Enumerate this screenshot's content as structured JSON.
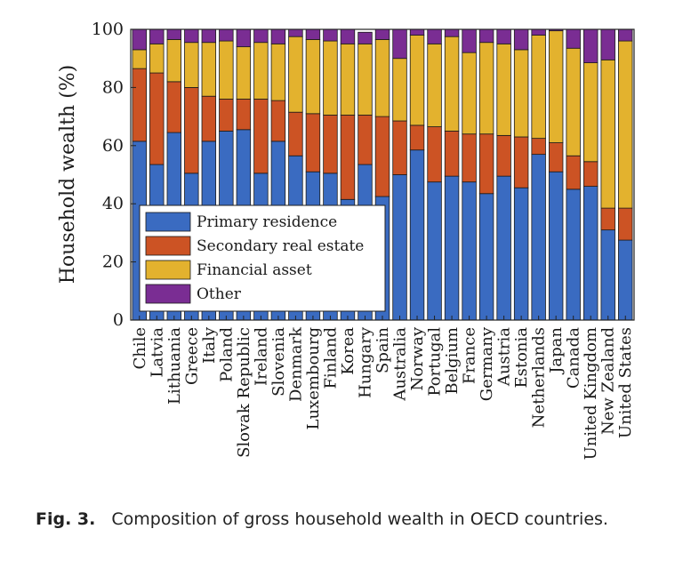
{
  "chart_data": {
    "type": "bar",
    "stacked": true,
    "ylabel": "Household wealth (%)",
    "ylim": [
      0,
      100
    ],
    "yticks": [
      0,
      20,
      40,
      60,
      80,
      100
    ],
    "legend_position": "bottom-left",
    "grid": false,
    "categories": [
      "Chile",
      "Latvia",
      "Lithuania",
      "Greece",
      "Italy",
      "Poland",
      "Slovak Republic",
      "Ireland",
      "Slovenia",
      "Denmark",
      "Luxembourg",
      "Finland",
      "Korea",
      "Hungary",
      "Spain",
      "Australia",
      "Norway",
      "Portugal",
      "Belgium",
      "France",
      "Germany",
      "Austria",
      "Estonia",
      "Netherlands",
      "Japan",
      "Canada",
      "United Kingdom",
      "New Zealand",
      "United States"
    ],
    "series": [
      {
        "name": "Primary residence",
        "color": "#3a6bc1",
        "values": [
          61.5,
          53.5,
          64.5,
          50.5,
          61.5,
          65,
          65.5,
          50.5,
          61.5,
          56.5,
          51,
          50.5,
          41.5,
          53.5,
          42.5,
          50,
          58.5,
          47.5,
          49.5,
          47.5,
          43.5,
          49.5,
          45.5,
          57,
          51,
          45,
          46,
          31,
          27.5
        ]
      },
      {
        "name": "Secondary real estate",
        "color": "#cc5324",
        "values": [
          25,
          31.5,
          17.5,
          29.5,
          15.5,
          11,
          10.5,
          25.5,
          14,
          15,
          20,
          20,
          29,
          17,
          27.5,
          18.5,
          8.5,
          19,
          15.5,
          16.5,
          20.5,
          14,
          17.5,
          5.5,
          10,
          11.5,
          8.5,
          7.5,
          11
        ]
      },
      {
        "name": "Financial asset",
        "color": "#e3b22e",
        "values": [
          6.5,
          10,
          14.5,
          15.5,
          18.5,
          20,
          18,
          19.5,
          19.5,
          26,
          25.5,
          25.5,
          24.5,
          24.5,
          26.5,
          21.5,
          31,
          28.5,
          32.5,
          28,
          31.5,
          31.5,
          30,
          35.5,
          38.5,
          37,
          34,
          51,
          57.5
        ]
      },
      {
        "name": "Other",
        "color": "#7a2d93",
        "values": [
          7,
          5,
          3.5,
          4.5,
          4.5,
          4,
          6,
          4.5,
          5,
          2.5,
          3.5,
          4,
          5,
          4,
          3.5,
          10,
          2,
          5,
          2.5,
          8,
          4.5,
          5,
          7,
          2,
          0.5,
          6.5,
          11.5,
          10.5,
          4
        ]
      }
    ]
  },
  "caption": {
    "label": "Fig. 3.",
    "text": "Composition of gross household wealth in OECD countries."
  }
}
